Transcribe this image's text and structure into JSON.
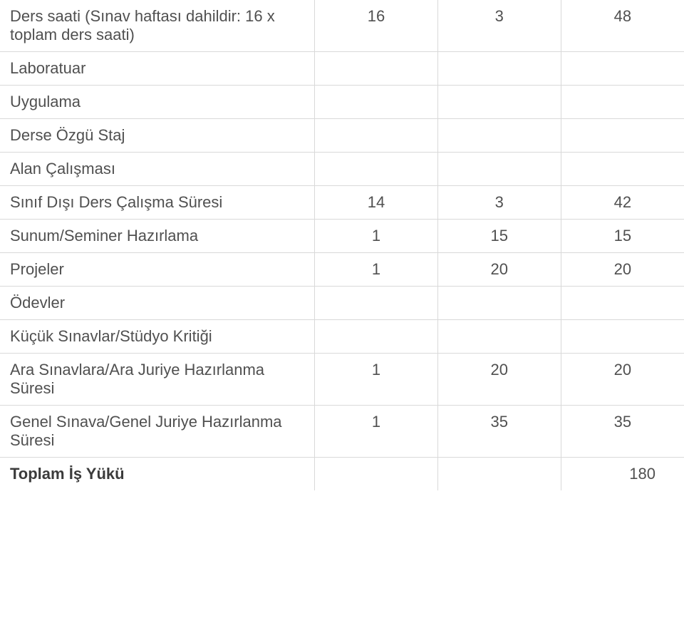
{
  "table": {
    "columns_ratio": [
      0.46,
      0.18,
      0.18,
      0.18
    ],
    "border_color": "#d9d9d9",
    "text_color": "#505050",
    "bold_color": "#3b3b3b",
    "font_size_pt": 16,
    "background_color": "#ffffff",
    "rows": [
      {
        "label": "Ders saati (Sınav haftası dahildir: 16 x toplam ders saati)",
        "c1": "16",
        "c2": "3",
        "c3": "48"
      },
      {
        "label": "Laboratuar",
        "c1": "",
        "c2": "",
        "c3": ""
      },
      {
        "label": "Uygulama",
        "c1": "",
        "c2": "",
        "c3": ""
      },
      {
        "label": "Derse Özgü Staj",
        "c1": "",
        "c2": "",
        "c3": ""
      },
      {
        "label": "Alan Çalışması",
        "c1": "",
        "c2": "",
        "c3": ""
      },
      {
        "label": "Sınıf Dışı Ders Çalışma Süresi",
        "c1": "14",
        "c2": "3",
        "c3": "42"
      },
      {
        "label": "Sunum/Seminer Hazırlama",
        "c1": "1",
        "c2": "15",
        "c3": "15"
      },
      {
        "label": "Projeler",
        "c1": "1",
        "c2": "20",
        "c3": "20"
      },
      {
        "label": "Ödevler",
        "c1": "",
        "c2": "",
        "c3": ""
      },
      {
        "label": "Küçük Sınavlar/Stüdyo Kritiği",
        "c1": "",
        "c2": "",
        "c3": ""
      },
      {
        "label": "Ara Sınavlara/Ara Juriye Hazırlanma Süresi",
        "c1": "1",
        "c2": "20",
        "c3": "20"
      },
      {
        "label": "Genel Sınava/Genel Juriye Hazırlanma Süresi",
        "c1": "1",
        "c2": "35",
        "c3": "35"
      }
    ],
    "total": {
      "label": "Toplam İş Yükü",
      "value": "180"
    }
  }
}
